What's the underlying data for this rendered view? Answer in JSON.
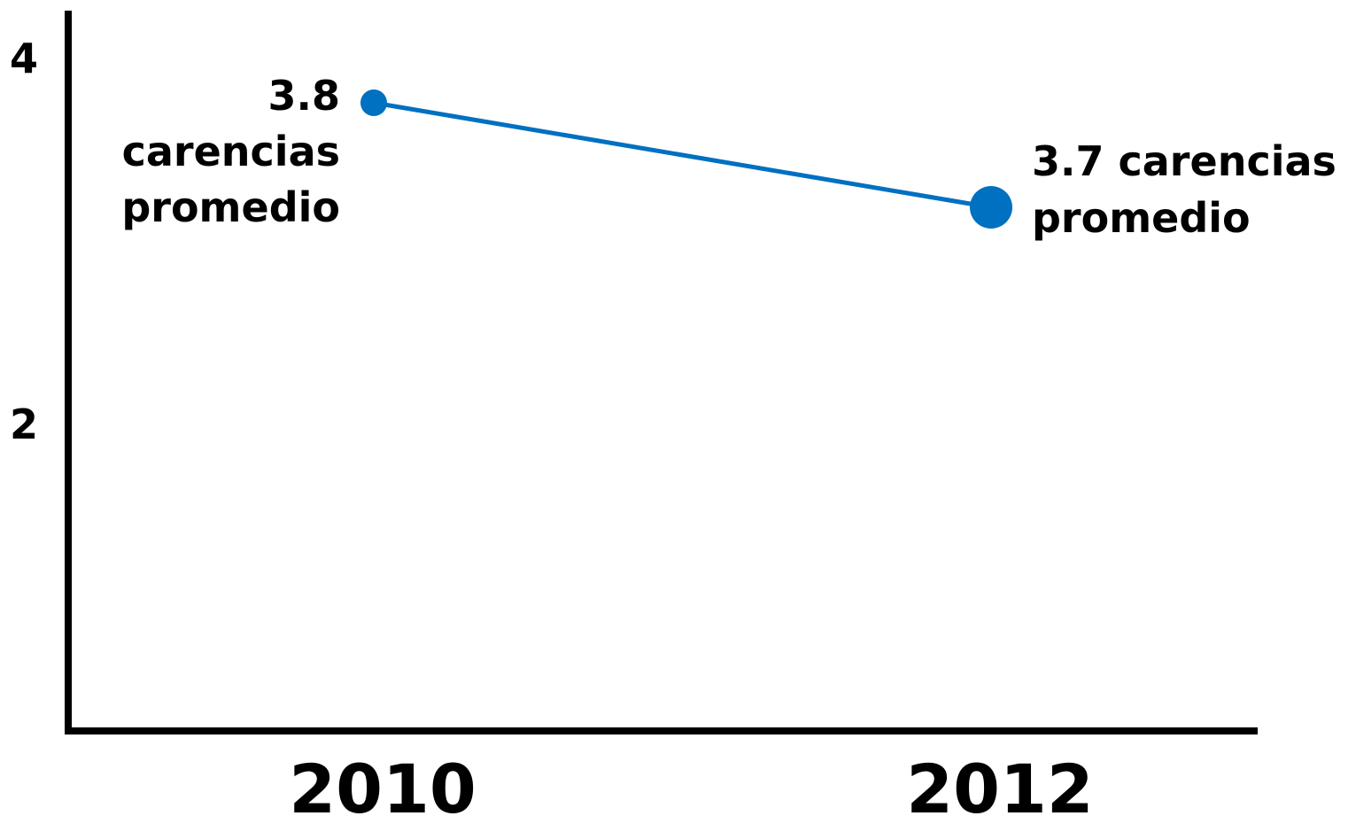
{
  "chart_data": {
    "type": "line",
    "categories": [
      "2010",
      "2012"
    ],
    "series": [
      {
        "values": [
          3.8,
          3.7
        ],
        "color": "#0070C0",
        "marker": "circle"
      }
    ],
    "data_labels": [
      [
        "3.8",
        "carencias",
        "promedio"
      ],
      [
        "3.7 carencias",
        "promedio"
      ]
    ],
    "y_ticks": [
      "2",
      "4"
    ],
    "ylim": [
      0,
      4
    ],
    "grid": false,
    "legend": "none"
  }
}
